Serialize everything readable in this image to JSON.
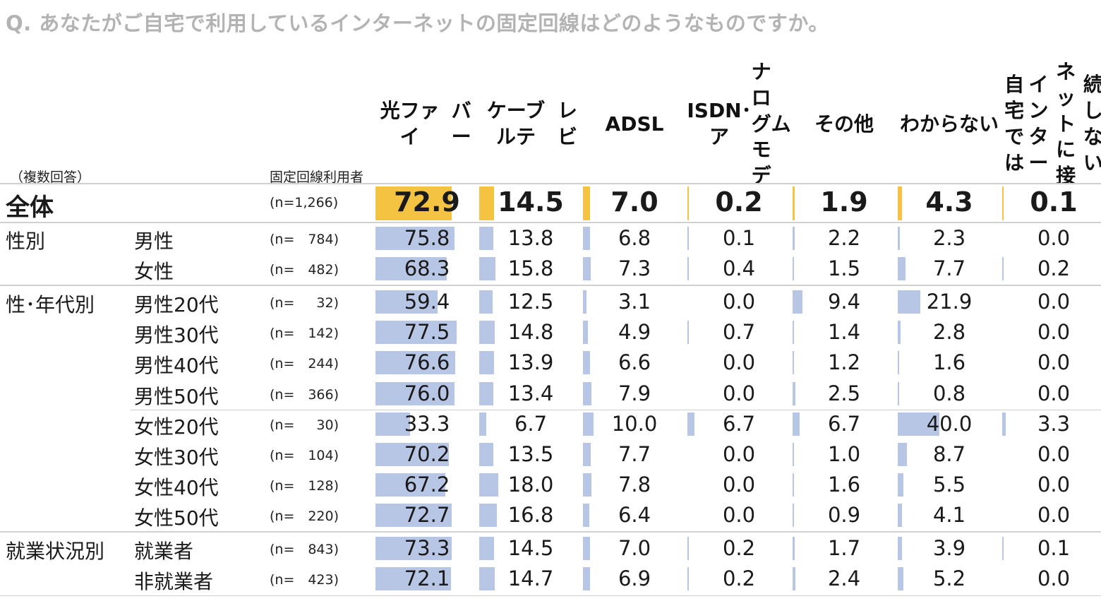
{
  "question": "Q.  あなたがご自宅で利用しているインターネットの固定回線はどのようなものですか。",
  "note": "（複数回答）",
  "n_header": "固定回線利用者",
  "colors": {
    "total_bar": "#f5c342",
    "row_bar": "#b8c6e6",
    "question_text": "#b3b3b3"
  },
  "chart_data": {
    "type": "table",
    "columns": [
      [
        "光ファイ",
        "バー"
      ],
      [
        "ケーブルテ",
        "レビ"
      ],
      [
        "ADSL"
      ],
      [
        "ISDN･ア",
        "ナログモデ",
        "ム"
      ],
      [
        "その他"
      ],
      [
        "わからない"
      ],
      [
        "自宅では",
        "インター",
        "ネットに接",
        "続しない"
      ]
    ],
    "total": {
      "label": "全体",
      "n_prefix": "(n=1,266)",
      "n_num": "",
      "values": [
        72.9,
        14.5,
        7.0,
        0.2,
        1.9,
        4.3,
        0.1
      ]
    },
    "rows": [
      {
        "group": "性別",
        "label": "男性",
        "n_prefix": "(n=",
        "n_num": "784)",
        "values": [
          75.8,
          13.8,
          6.8,
          0.1,
          2.2,
          2.3,
          0.0
        ]
      },
      {
        "group": "",
        "label": "女性",
        "n_prefix": "(n=",
        "n_num": "482)",
        "values": [
          68.3,
          15.8,
          7.3,
          0.4,
          1.5,
          7.7,
          0.2
        ]
      },
      {
        "group": "性･年代別",
        "label": "男性20代",
        "n_prefix": "(n=",
        "n_num": "32)",
        "values": [
          59.4,
          12.5,
          3.1,
          0.0,
          9.4,
          21.9,
          0.0
        ]
      },
      {
        "group": "",
        "label": "男性30代",
        "n_prefix": "(n=",
        "n_num": "142)",
        "values": [
          77.5,
          14.8,
          4.9,
          0.7,
          1.4,
          2.8,
          0.0
        ]
      },
      {
        "group": "",
        "label": "男性40代",
        "n_prefix": "(n=",
        "n_num": "244)",
        "values": [
          76.6,
          13.9,
          6.6,
          0.0,
          1.2,
          1.6,
          0.0
        ]
      },
      {
        "group": "",
        "label": "男性50代",
        "n_prefix": "(n=",
        "n_num": "366)",
        "values": [
          76.0,
          13.4,
          7.9,
          0.0,
          2.5,
          0.8,
          0.0
        ]
      },
      {
        "group": "",
        "label": "女性20代",
        "n_prefix": "(n=",
        "n_num": "30)",
        "values": [
          33.3,
          6.7,
          10.0,
          6.7,
          6.7,
          40.0,
          3.3
        ]
      },
      {
        "group": "",
        "label": "女性30代",
        "n_prefix": "(n=",
        "n_num": "104)",
        "values": [
          70.2,
          13.5,
          7.7,
          0.0,
          1.0,
          8.7,
          0.0
        ]
      },
      {
        "group": "",
        "label": "女性40代",
        "n_prefix": "(n=",
        "n_num": "128)",
        "values": [
          67.2,
          18.0,
          7.8,
          0.0,
          1.6,
          5.5,
          0.0
        ]
      },
      {
        "group": "",
        "label": "女性50代",
        "n_prefix": "(n=",
        "n_num": "220)",
        "values": [
          72.7,
          16.8,
          6.4,
          0.0,
          0.9,
          4.1,
          0.0
        ]
      },
      {
        "group": "就業状況別",
        "label": "就業者",
        "n_prefix": "(n=",
        "n_num": "843)",
        "values": [
          73.3,
          14.5,
          7.0,
          0.2,
          1.7,
          3.9,
          0.1
        ]
      },
      {
        "group": "",
        "label": "非就業者",
        "n_prefix": "(n=",
        "n_num": "423)",
        "values": [
          72.1,
          14.7,
          6.9,
          0.2,
          2.4,
          5.2,
          0.0
        ]
      }
    ]
  }
}
